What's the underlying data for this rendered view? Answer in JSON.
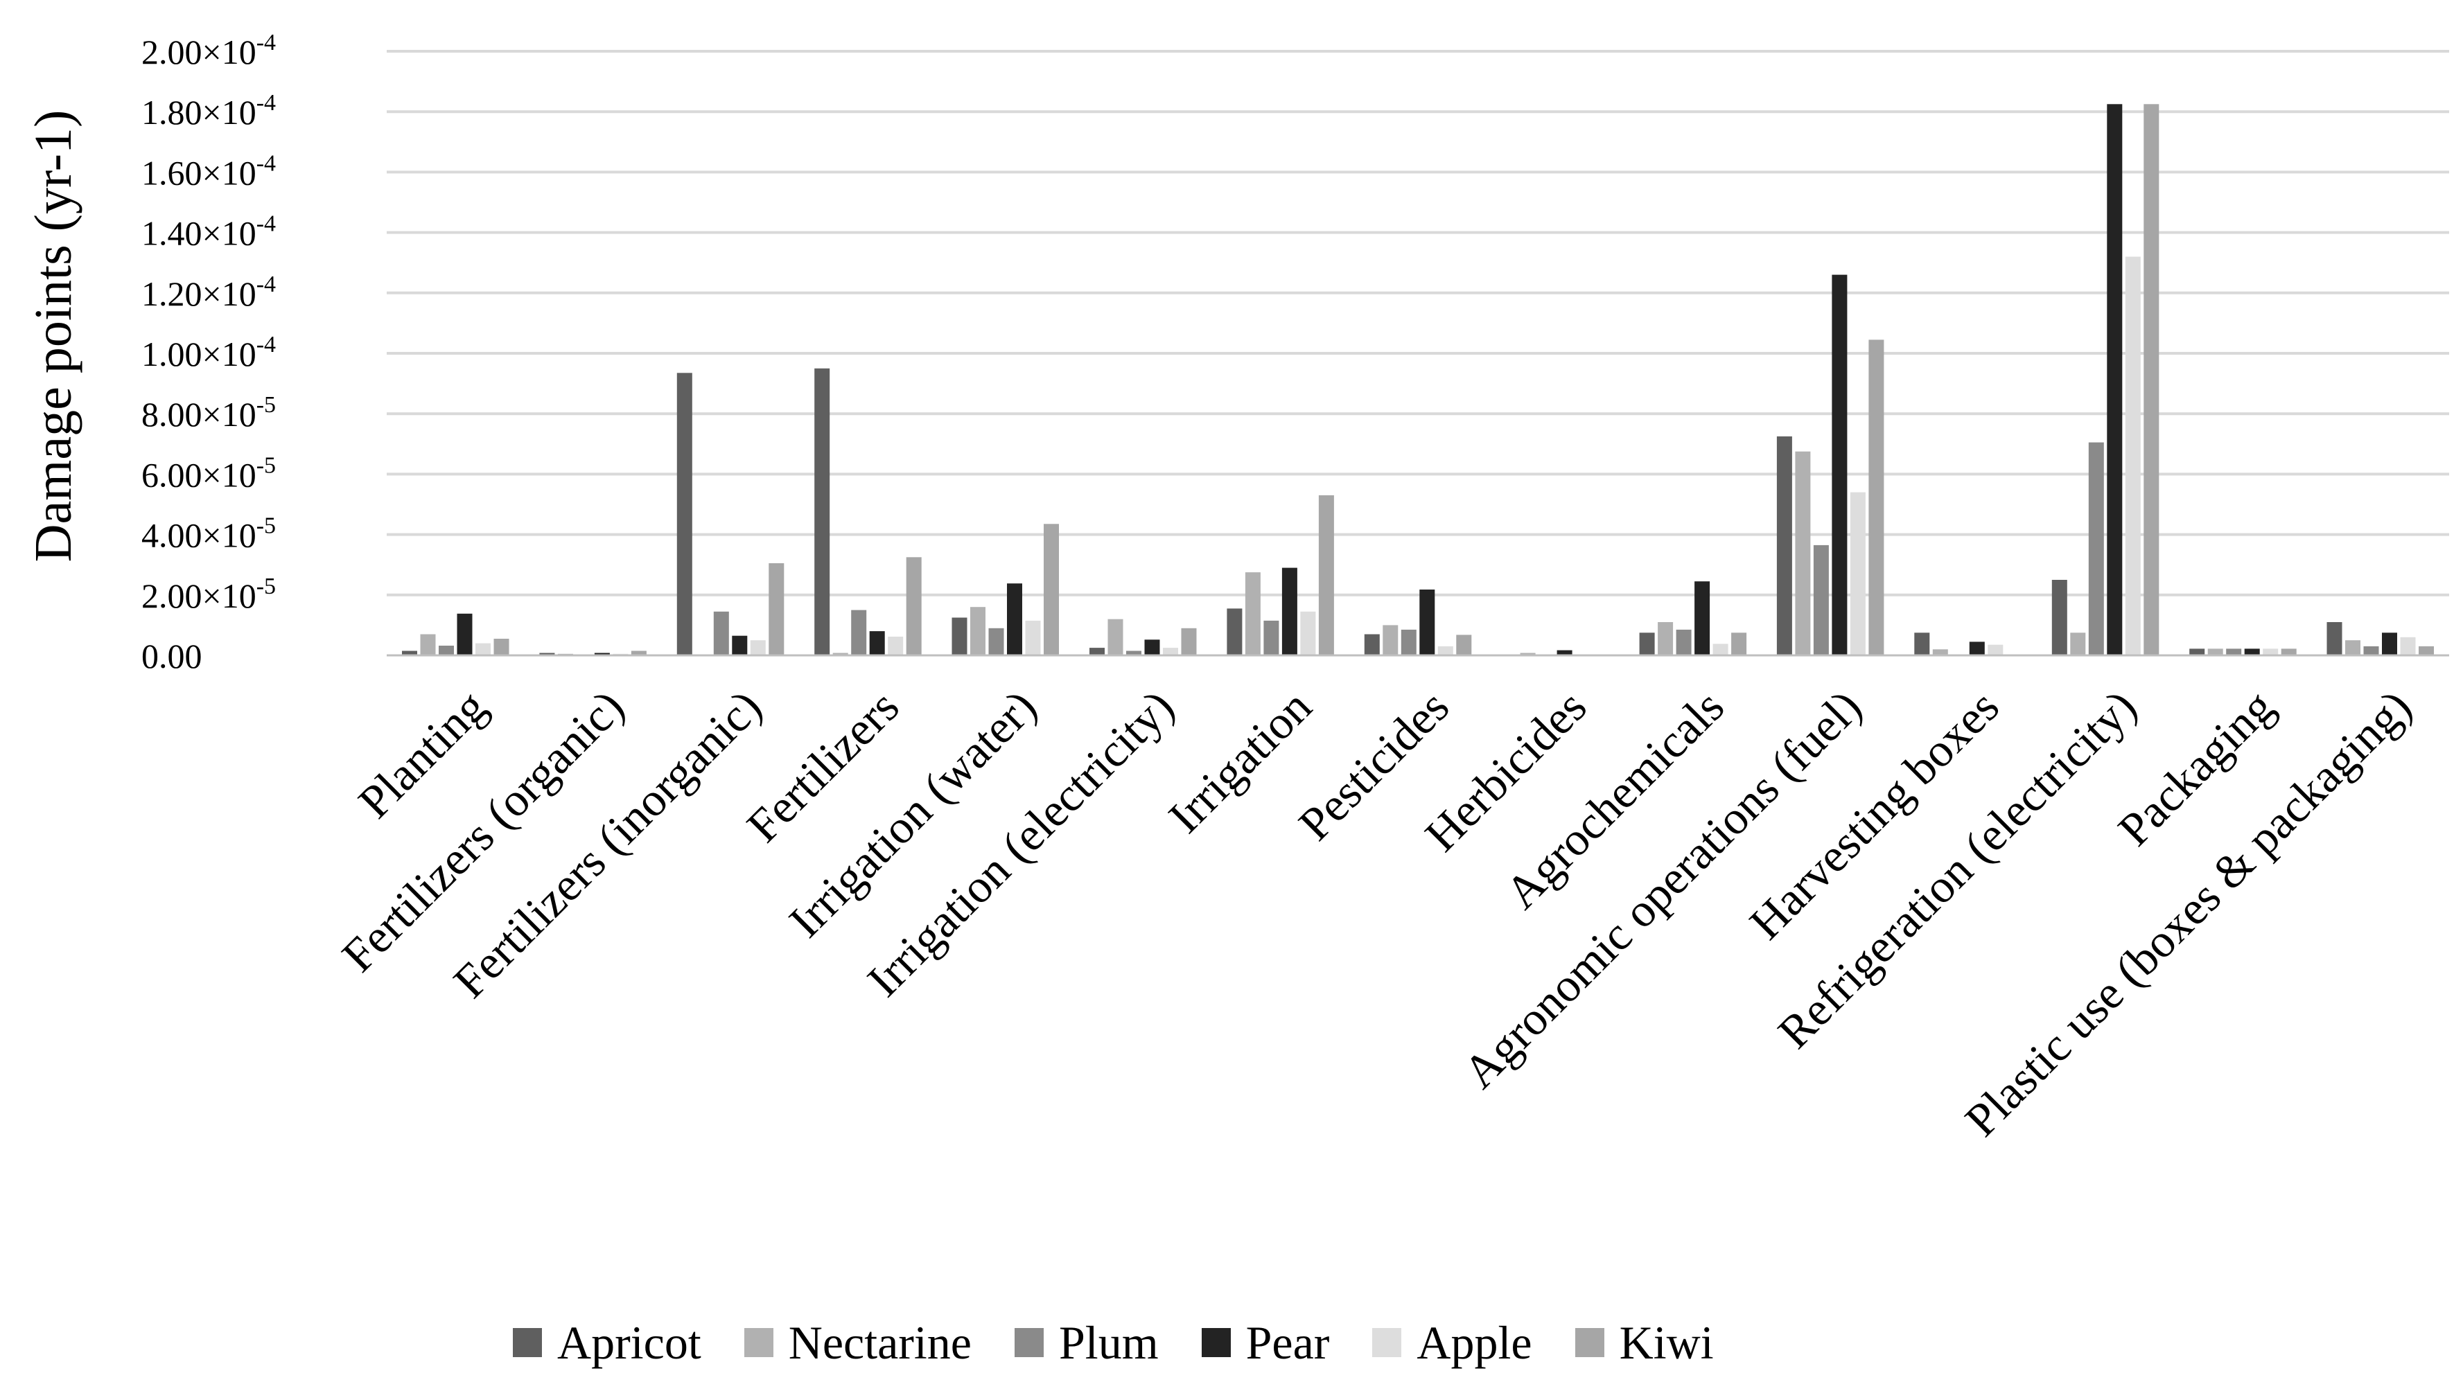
{
  "chart_data": {
    "type": "bar",
    "title": "",
    "xlabel": "",
    "ylabel": "Damage points (yr-1)",
    "ylim": [
      0,
      0.0002
    ],
    "y_ticks": [
      {
        "value": 0,
        "mantissa": "0.00",
        "exp": ""
      },
      {
        "value": 2e-05,
        "mantissa": "2.00×10",
        "exp": "-5"
      },
      {
        "value": 4e-05,
        "mantissa": "4.00×10",
        "exp": "-5"
      },
      {
        "value": 6e-05,
        "mantissa": "6.00×10",
        "exp": "-5"
      },
      {
        "value": 8e-05,
        "mantissa": "8.00×10",
        "exp": "-5"
      },
      {
        "value": 0.0001,
        "mantissa": "1.00×10",
        "exp": "-4"
      },
      {
        "value": 0.00012,
        "mantissa": "1.20×10",
        "exp": "-4"
      },
      {
        "value": 0.00014,
        "mantissa": "1.40×10",
        "exp": "-4"
      },
      {
        "value": 0.00016,
        "mantissa": "1.60×10",
        "exp": "-4"
      },
      {
        "value": 0.00018,
        "mantissa": "1.80×10",
        "exp": "-4"
      },
      {
        "value": 0.0002,
        "mantissa": "2.00×10",
        "exp": "-4"
      }
    ],
    "grid": true,
    "legend_position": "bottom",
    "categories": [
      "Planting",
      "Fertilizers (organic)",
      "Fertilizers (inorganic)",
      "Fertilizers",
      "Irrigation (water)",
      "Irrigation (electricity)",
      "Irrigation",
      "Pesticides",
      "Herbicides",
      "Agrochemicals",
      "Agronomic operations (fuel)",
      "Harvesting boxes",
      "Refrigeration (electricity)",
      "Packaging",
      "Plastic use (boxes & packaging)"
    ],
    "series": [
      {
        "name": "Apricot",
        "color": "#5f5f5f",
        "values": [
          1.5e-06,
          8e-07,
          9.35e-05,
          9.5e-05,
          1.25e-05,
          2.5e-06,
          1.55e-05,
          7e-06,
          3e-07,
          7.5e-06,
          7.25e-05,
          7.5e-06,
          2.5e-05,
          2.2e-06,
          1.1e-05
        ]
      },
      {
        "name": "Nectarine",
        "color": "#b1b1b1",
        "values": [
          7e-06,
          5e-07,
          2e-07,
          8e-07,
          1.6e-05,
          1.2e-05,
          2.75e-05,
          1e-05,
          8e-07,
          1.1e-05,
          6.75e-05,
          2e-06,
          7.5e-06,
          2.2e-06,
          5e-06
        ]
      },
      {
        "name": "Plum",
        "color": "#8a8a8a",
        "values": [
          3.2e-06,
          2e-07,
          1.45e-05,
          1.5e-05,
          9e-06,
          1.5e-06,
          1.15e-05,
          8.5e-06,
          2e-07,
          8.5e-06,
          3.65e-05,
          2e-07,
          7.05e-05,
          2.2e-06,
          3e-06
        ]
      },
      {
        "name": "Pear",
        "color": "#232323",
        "values": [
          1.38e-05,
          8e-07,
          6.5e-06,
          8e-06,
          2.38e-05,
          5.2e-06,
          2.9e-05,
          2.18e-05,
          1.7e-06,
          2.45e-05,
          0.000126,
          4.5e-06,
          0.0001825,
          2.2e-06,
          7.5e-06
        ]
      },
      {
        "name": "Apple",
        "color": "#dddddd",
        "values": [
          4e-06,
          5e-07,
          5e-06,
          6.2e-06,
          1.15e-05,
          2.5e-06,
          1.45e-05,
          3e-06,
          3e-07,
          3.8e-06,
          5.4e-05,
          3.5e-06,
          0.000132,
          2.2e-06,
          6e-06
        ]
      },
      {
        "name": "Kiwi",
        "color": "#a6a6a6",
        "values": [
          5.5e-06,
          1.5e-06,
          3.05e-05,
          3.25e-05,
          4.35e-05,
          9e-06,
          5.3e-05,
          6.8e-06,
          2e-07,
          7.5e-06,
          0.0001045,
          2e-07,
          0.0001825,
          2.2e-06,
          3e-06
        ]
      }
    ]
  }
}
